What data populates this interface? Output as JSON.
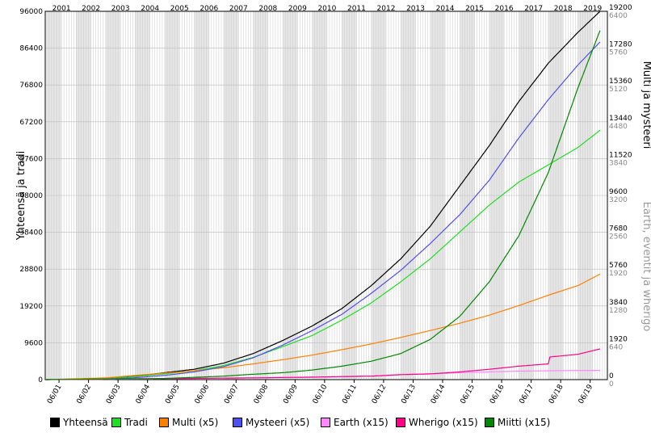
{
  "chart_data": {
    "type": "line",
    "title": "",
    "years": [
      "2001",
      "2002",
      "2003",
      "2004",
      "2005",
      "2006",
      "2007",
      "2008",
      "2009",
      "2010",
      "2011",
      "2012",
      "2013",
      "2014",
      "2015",
      "2016",
      "2017",
      "2018",
      "2019"
    ],
    "x_tick_labels": [
      "06/01",
      "06/02",
      "06/03",
      "06/04",
      "06/05",
      "06/06",
      "06/07",
      "06/08",
      "06/09",
      "06/10",
      "06/11",
      "06/12",
      "06/13",
      "06/14",
      "06/15",
      "06/16",
      "06/17",
      "06/18",
      "06/19"
    ],
    "left_axis": {
      "label": "Yhteensä ja tradi",
      "ticks": [
        "0",
        "9600",
        "19200",
        "28800",
        "38400",
        "48000",
        "57600",
        "67200",
        "76800",
        "86400",
        "96000"
      ],
      "range": [
        0,
        96000
      ]
    },
    "right_axis_1": {
      "label": "Multi ja mysteeri",
      "ticks": [
        "0",
        "1920",
        "3840",
        "5760",
        "7680",
        "9600",
        "11520",
        "13440",
        "15360",
        "17280",
        "19200"
      ],
      "range": [
        0,
        19200
      ]
    },
    "right_axis_2": {
      "label": "Earth, eventit ja wherigo",
      "ticks": [
        "0",
        "640",
        "1280",
        "1920",
        "2560",
        "3200",
        "3840",
        "4480",
        "5120",
        "5760",
        "6400"
      ],
      "range": [
        0,
        6400
      ]
    },
    "x_range": [
      2000.95,
      2020.0
    ],
    "series": [
      {
        "name": "Yhteensä",
        "color": "#000000",
        "points": [
          [
            2000.95,
            0
          ],
          [
            2003,
            300
          ],
          [
            2004,
            900
          ],
          [
            2005,
            1800
          ],
          [
            2006,
            2700
          ],
          [
            2007,
            4300
          ],
          [
            2008,
            6800
          ],
          [
            2009,
            10200
          ],
          [
            2010,
            14000
          ],
          [
            2011,
            18500
          ],
          [
            2012,
            24500
          ],
          [
            2013,
            31500
          ],
          [
            2014,
            40000
          ],
          [
            2015,
            50500
          ],
          [
            2016,
            61000
          ],
          [
            2017,
            72500
          ],
          [
            2018,
            82500
          ],
          [
            2019,
            90500
          ],
          [
            2019.75,
            96000
          ]
        ]
      },
      {
        "name": "Tradi",
        "color": "#22dd22",
        "points": [
          [
            2000.95,
            0
          ],
          [
            2003,
            250
          ],
          [
            2004,
            800
          ],
          [
            2005,
            1500
          ],
          [
            2006,
            2300
          ],
          [
            2007,
            3700
          ],
          [
            2008,
            5800
          ],
          [
            2009,
            8600
          ],
          [
            2010,
            11500
          ],
          [
            2011,
            15500
          ],
          [
            2012,
            20000
          ],
          [
            2013,
            25500
          ],
          [
            2014,
            31500
          ],
          [
            2015,
            38500
          ],
          [
            2016,
            45500
          ],
          [
            2017,
            51500
          ],
          [
            2018,
            56000
          ],
          [
            2019,
            60500
          ],
          [
            2019.75,
            65000
          ]
        ]
      },
      {
        "name": "Multi (x5)",
        "color": "#ff8000",
        "points": [
          [
            2000.95,
            0
          ],
          [
            2003,
            450
          ],
          [
            2004,
            1100
          ],
          [
            2005,
            1700
          ],
          [
            2006,
            2300
          ],
          [
            2007,
            3100
          ],
          [
            2008,
            4100
          ],
          [
            2009,
            5200
          ],
          [
            2010,
            6400
          ],
          [
            2011,
            7800
          ],
          [
            2012,
            9300
          ],
          [
            2013,
            11000
          ],
          [
            2014,
            12800
          ],
          [
            2015,
            14700
          ],
          [
            2016,
            16800
          ],
          [
            2017,
            19300
          ],
          [
            2018,
            22000
          ],
          [
            2019,
            24500
          ],
          [
            2019.75,
            27500
          ]
        ]
      },
      {
        "name": "Mysteeri (x5)",
        "color": "#5050ee",
        "points": [
          [
            2000.95,
            0
          ],
          [
            2003,
            150
          ],
          [
            2004,
            500
          ],
          [
            2005,
            1100
          ],
          [
            2006,
            2000
          ],
          [
            2007,
            3400
          ],
          [
            2008,
            5700
          ],
          [
            2009,
            9000
          ],
          [
            2010,
            12800
          ],
          [
            2011,
            17000
          ],
          [
            2012,
            22500
          ],
          [
            2013,
            28500
          ],
          [
            2014,
            35500
          ],
          [
            2015,
            43000
          ],
          [
            2016,
            52000
          ],
          [
            2017,
            63000
          ],
          [
            2018,
            73000
          ],
          [
            2019,
            82000
          ],
          [
            2019.75,
            88000
          ]
        ]
      },
      {
        "name": "Earth (x15)",
        "color": "#ff88ff",
        "points": [
          [
            2000.95,
            0
          ],
          [
            2004,
            150
          ],
          [
            2007,
            400
          ],
          [
            2010,
            600
          ],
          [
            2012,
            900
          ],
          [
            2013,
            1300
          ],
          [
            2014,
            1500
          ],
          [
            2015,
            1800
          ],
          [
            2016,
            2000
          ],
          [
            2017,
            2200
          ],
          [
            2018,
            2300
          ],
          [
            2019,
            2400
          ],
          [
            2019.75,
            2400
          ]
        ]
      },
      {
        "name": "Wherigo (x15)",
        "color": "#ff0088",
        "points": [
          [
            2000.95,
            0
          ],
          [
            2008,
            450
          ],
          [
            2009,
            550
          ],
          [
            2010,
            650
          ],
          [
            2011,
            800
          ],
          [
            2012,
            900
          ],
          [
            2013,
            1300
          ],
          [
            2014,
            1500
          ],
          [
            2015,
            2000
          ],
          [
            2016,
            2700
          ],
          [
            2017,
            3500
          ],
          [
            2018,
            4100
          ],
          [
            2018.05,
            5900
          ],
          [
            2019,
            6600
          ],
          [
            2019.75,
            8000
          ]
        ]
      },
      {
        "name": "Miitti (x15)",
        "color": "#008800",
        "points": [
          [
            2000.95,
            0
          ],
          [
            2005,
            300
          ],
          [
            2007,
            900
          ],
          [
            2008,
            1400
          ],
          [
            2009,
            1800
          ],
          [
            2010,
            2500
          ],
          [
            2011,
            3500
          ],
          [
            2012,
            4800
          ],
          [
            2013,
            6800
          ],
          [
            2014,
            10500
          ],
          [
            2015,
            16500
          ],
          [
            2016,
            25500
          ],
          [
            2017,
            37500
          ],
          [
            2018,
            54000
          ],
          [
            2019,
            76000
          ],
          [
            2019.75,
            91000
          ]
        ]
      }
    ],
    "legend_position": "bottom",
    "grid": true
  }
}
